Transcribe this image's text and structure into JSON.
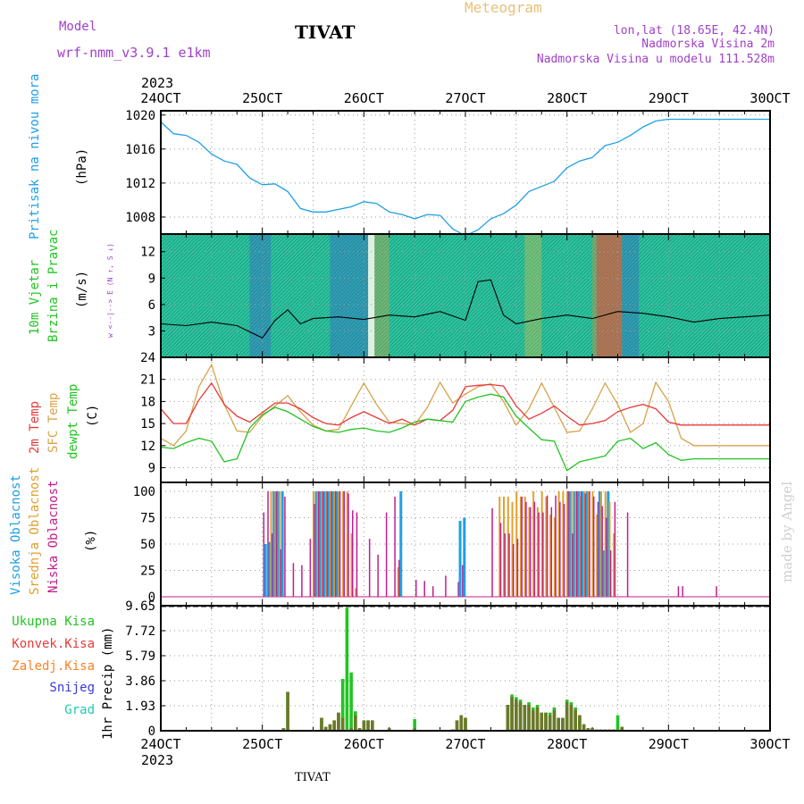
{
  "header": {
    "model_label": "Model",
    "model_name": "wrf-nmm_v3.9.1 e1km",
    "station": "TIVAT",
    "meteogram_label": "Meteogram",
    "lonlat": "lon,lat (18.65E, 42.4N)",
    "elevation": "Nadmorska Visina 2m",
    "model_elevation": "Nadmorska Visina u modelu 111.528m"
  },
  "footer": {
    "station": "TIVAT",
    "watermark": "made by Angel"
  },
  "x_axis": {
    "year": "2023",
    "labels": [
      "24OCT",
      "25OCT",
      "26OCT",
      "27OCT",
      "28OCT",
      "29OCT",
      "30OCT"
    ]
  },
  "colors": {
    "pressure": "#1ea0e6",
    "wind_speed": "#000000",
    "temp_2m": "#e83a3a",
    "temp_sfc": "#d8a24a",
    "dewpoint": "#22c422",
    "cloud_high": "#1ea0e6",
    "cloud_mid": "#e0a030",
    "cloud_low": "#c0208a",
    "precip_total": "#22c422",
    "precip_conv": "#e83a3a",
    "precip_frozen": "#ff8020",
    "snow": "#3a3ad8",
    "graupel": "#20c8b0",
    "wind_panel_bg": "#2ec4a0",
    "watermark": "#d0d0d0"
  },
  "chart_data": [
    {
      "type": "line",
      "panel": "pressure",
      "ylabel": "Pritisak na nivou mora",
      "units": "(hPa)",
      "ylim": [
        1006,
        1020.5
      ],
      "yticks": [
        1008,
        1012,
        1016,
        1020
      ],
      "grid": true,
      "x_hours": [
        0,
        3,
        6,
        9,
        12,
        15,
        18,
        21,
        24,
        27,
        30,
        33,
        36,
        39,
        42,
        45,
        48,
        51,
        54,
        57,
        60,
        63,
        66,
        69,
        72,
        75,
        78,
        81,
        84,
        87,
        90,
        93,
        96,
        99,
        102,
        105,
        108,
        111,
        114,
        117,
        120,
        123,
        126,
        129,
        132,
        135,
        138,
        141,
        144
      ],
      "series": [
        {
          "name": "Pritisak na nivou mora",
          "values": [
            1019.2,
            1017.8,
            1017.6,
            1016.8,
            1015.4,
            1014.6,
            1014.2,
            1012.6,
            1011.8,
            1011.9,
            1011.0,
            1009.0,
            1008.6,
            1008.6,
            1008.9,
            1009.2,
            1009.8,
            1009.6,
            1008.6,
            1008.3,
            1007.8,
            1008.3,
            1008.2,
            1006.6,
            1005.8,
            1006.5,
            1007.8,
            1008.4,
            1009.4,
            1011.0,
            1011.6,
            1012.2,
            1013.8,
            1014.6,
            1015.0,
            1016.4,
            1016.8,
            1017.6,
            1018.6,
            1019.3,
            1019.5,
            1019.5,
            1019.5,
            1019.5,
            1019.5,
            1019.5,
            1019.5,
            1019.5,
            1019.5
          ]
        }
      ]
    },
    {
      "type": "line",
      "panel": "wind",
      "ylabel": "10m Vjetar Brzina i Pravac",
      "units": "(m/s)",
      "compass": "w <--|--> E (N ↑, S ↓)",
      "ylim": [
        0,
        14
      ],
      "yticks": [
        3,
        6,
        9,
        12
      ],
      "grid": true,
      "x_hours": [
        0,
        6,
        12,
        18,
        24,
        27,
        30,
        33,
        36,
        42,
        48,
        54,
        60,
        66,
        72,
        75,
        78,
        81,
        84,
        90,
        96,
        102,
        108,
        114,
        120,
        126,
        132,
        138,
        144
      ],
      "series": [
        {
          "name": "Brzina vjetra",
          "values": [
            3.8,
            3.6,
            4.0,
            3.6,
            2.2,
            4.2,
            5.4,
            3.8,
            4.4,
            4.6,
            4.3,
            4.8,
            4.6,
            5.2,
            4.2,
            8.6,
            8.8,
            4.8,
            3.8,
            4.4,
            4.8,
            4.4,
            5.2,
            5.0,
            4.6,
            4.0,
            4.4,
            4.6,
            4.8
          ]
        }
      ]
    },
    {
      "type": "line",
      "panel": "temperature",
      "ylabel_series": [
        "2m Temp",
        "SFC Temp",
        "dewpt Temp"
      ],
      "units": "(C)",
      "ylim": [
        7,
        24
      ],
      "yticks": [
        9,
        12,
        15,
        18,
        21,
        24
      ],
      "grid": true,
      "x_hours": [
        0,
        3,
        6,
        9,
        12,
        15,
        18,
        21,
        24,
        27,
        30,
        33,
        36,
        39,
        42,
        45,
        48,
        51,
        54,
        57,
        60,
        63,
        66,
        69,
        72,
        75,
        78,
        81,
        84,
        87,
        90,
        93,
        96,
        99,
        102,
        105,
        108,
        111,
        114,
        117,
        120,
        123,
        126,
        129,
        132,
        135,
        138,
        141,
        144
      ],
      "series": [
        {
          "name": "2m Temp",
          "values": [
            17.0,
            15.0,
            15.0,
            18.2,
            20.5,
            17.6,
            16.0,
            15.2,
            16.5,
            17.8,
            17.8,
            17.0,
            15.8,
            15.0,
            14.8,
            15.8,
            16.6,
            15.8,
            15.0,
            15.6,
            14.8,
            15.6,
            15.4,
            16.8,
            20.0,
            20.2,
            20.3,
            20.1,
            17.4,
            15.6,
            16.4,
            17.4,
            16.0,
            14.8,
            15.0,
            15.4,
            16.6,
            17.2,
            17.6,
            17.0,
            15.2,
            14.8,
            14.8,
            14.8,
            14.8,
            14.8,
            14.8,
            14.8,
            14.8
          ]
        },
        {
          "name": "SFC Temp",
          "values": [
            13.0,
            12.0,
            14.0,
            20.0,
            23.0,
            17.6,
            14.0,
            13.8,
            16.0,
            17.4,
            18.8,
            16.6,
            14.8,
            14.0,
            14.2,
            17.4,
            20.5,
            17.6,
            15.2,
            15.0,
            14.8,
            17.2,
            20.6,
            17.8,
            19.0,
            20.0,
            20.4,
            18.0,
            14.8,
            17.0,
            20.5,
            17.2,
            13.8,
            14.0,
            17.0,
            20.5,
            17.6,
            13.8,
            15.0,
            20.6,
            18.0,
            13.0,
            12.0,
            12.0,
            12.0,
            12.0,
            12.0,
            12.0,
            12.0
          ]
        },
        {
          "name": "dewpt Temp",
          "values": [
            11.8,
            11.6,
            12.4,
            13.0,
            12.6,
            9.8,
            10.2,
            14.4,
            16.2,
            17.2,
            16.6,
            15.6,
            14.6,
            14.0,
            13.8,
            14.2,
            14.4,
            14.0,
            13.8,
            14.4,
            15.2,
            15.6,
            15.4,
            15.2,
            18.0,
            18.6,
            19.0,
            18.6,
            16.0,
            14.4,
            12.8,
            12.6,
            8.6,
            9.8,
            10.2,
            10.6,
            12.6,
            13.0,
            11.6,
            12.4,
            10.8,
            10.0,
            10.2,
            10.2,
            10.2,
            10.2,
            10.2,
            10.2,
            10.2
          ]
        }
      ]
    },
    {
      "type": "bar",
      "panel": "clouds",
      "ylabel_series": [
        "Visoka Oblacnost",
        "Srednja Oblacnost",
        "Niska Oblacnost"
      ],
      "units": "(%)",
      "ylim": [
        0,
        100
      ],
      "yticks": [
        0,
        25,
        50,
        75,
        100
      ],
      "grid": true,
      "x_hours": [
        24,
        25,
        26,
        27,
        28,
        29,
        31,
        33,
        35,
        36,
        37,
        38,
        39,
        40,
        41,
        42,
        43,
        44,
        45,
        46,
        47,
        49,
        51,
        53,
        55,
        56,
        57,
        60,
        62,
        64,
        67,
        70,
        71,
        72,
        78,
        80,
        81,
        82,
        83,
        84,
        85,
        86,
        87,
        88,
        89,
        90,
        91,
        92,
        93,
        94,
        95,
        96,
        97,
        98,
        99,
        100,
        101,
        102,
        103,
        104,
        105,
        106,
        107,
        110,
        122,
        123,
        131
      ],
      "series": [
        {
          "name": "Visoka Oblacnost",
          "values": [
            0,
            50,
            52,
            100,
            100,
            100,
            0,
            0,
            0,
            0,
            100,
            100,
            100,
            100,
            100,
            100,
            0,
            0,
            0,
            0,
            0,
            0,
            0,
            0,
            0,
            0,
            100,
            0,
            0,
            0,
            0,
            0,
            72,
            75,
            0,
            0,
            0,
            0,
            0,
            0,
            0,
            0,
            0,
            0,
            0,
            0,
            0,
            0,
            0,
            0,
            0,
            0,
            100,
            100,
            100,
            100,
            100,
            0,
            0,
            100,
            44,
            100,
            0,
            0,
            0,
            0,
            0
          ]
        },
        {
          "name": "Srednja Oblacnost",
          "values": [
            0,
            0,
            100,
            100,
            100,
            0,
            0,
            0,
            0,
            100,
            100,
            100,
            100,
            100,
            100,
            100,
            100,
            100,
            60,
            8,
            0,
            0,
            0,
            0,
            0,
            28,
            0,
            0,
            0,
            0,
            0,
            0,
            0,
            0,
            0,
            95,
            95,
            95,
            90,
            100,
            95,
            95,
            85,
            100,
            85,
            100,
            95,
            78,
            75,
            100,
            100,
            100,
            100,
            100,
            95,
            100,
            100,
            100,
            78,
            100,
            100,
            90,
            60,
            0,
            0,
            0,
            0
          ]
        },
        {
          "name": "Niska Oblacnost",
          "values": [
            80,
            100,
            60,
            100,
            45,
            95,
            32,
            30,
            55,
            88,
            100,
            100,
            100,
            100,
            100,
            100,
            100,
            98,
            82,
            80,
            0,
            55,
            40,
            80,
            95,
            35,
            0,
            16,
            15,
            10,
            20,
            14,
            30,
            0,
            84,
            70,
            60,
            60,
            50,
            55,
            95,
            90,
            85,
            90,
            80,
            80,
            96,
            85,
            96,
            90,
            88,
            100,
            60,
            100,
            100,
            98,
            100,
            95,
            90,
            86,
            75,
            44,
            90,
            80,
            10,
            10,
            10
          ]
        }
      ]
    },
    {
      "type": "bar",
      "panel": "precipitation",
      "ylabel": "1hr Precip (mm)",
      "legend": [
        "Ukupna Kisa",
        "Konvek.Kisa",
        "Zaledj.Kisa",
        "Snijeg",
        "Grad"
      ],
      "ylim": [
        0,
        9.65
      ],
      "yticks": [
        0,
        1.93,
        3.86,
        5.79,
        7.72,
        9.65
      ],
      "grid": true,
      "x_hours": [
        29,
        30,
        38,
        39,
        40,
        41,
        42,
        43,
        44,
        45,
        46,
        47,
        48,
        49,
        50,
        54,
        60,
        69,
        70,
        71,
        72,
        82,
        83,
        84,
        85,
        86,
        87,
        88,
        89,
        90,
        91,
        92,
        93,
        94,
        95,
        96,
        97,
        98,
        99,
        100,
        101,
        102,
        103,
        104,
        105,
        106,
        107,
        108,
        109
      ],
      "series": [
        {
          "name": "Ukupna Kisa",
          "values": [
            0.2,
            3.0,
            1.0,
            0.3,
            0.5,
            0.8,
            1.4,
            4.0,
            9.5,
            4.5,
            1.5,
            0.2,
            0.8,
            0.8,
            0.8,
            0.2,
            0.9,
            0.1,
            0.8,
            1.2,
            1.0,
            2.0,
            2.8,
            2.6,
            2.4,
            2.0,
            2.2,
            1.8,
            2.0,
            1.4,
            1.4,
            1.4,
            1.8,
            1.0,
            1.0,
            2.4,
            2.2,
            1.8,
            1.2,
            0.5,
            0.2,
            0.2,
            0.1,
            0.1,
            0.1,
            0.1,
            0.1,
            1.2,
            0.3
          ]
        },
        {
          "name": "Konvek.Kisa",
          "values": [
            0.2,
            3.0,
            1.0,
            0.3,
            0.5,
            0.8,
            1.4,
            1.0,
            0.0,
            0.2,
            1.2,
            0.2,
            0.8,
            0.8,
            0.8,
            0.2,
            0.2,
            0.1,
            0.8,
            1.2,
            1.0,
            2.0,
            2.6,
            2.4,
            2.2,
            2.0,
            2.0,
            1.6,
            1.8,
            1.4,
            1.4,
            1.2,
            1.6,
            1.0,
            1.0,
            2.2,
            2.0,
            1.6,
            1.2,
            0.5,
            0.2,
            0.2,
            0.1,
            0.1,
            0.1,
            0.1,
            0.1,
            0.0,
            0.3
          ]
        }
      ]
    }
  ]
}
